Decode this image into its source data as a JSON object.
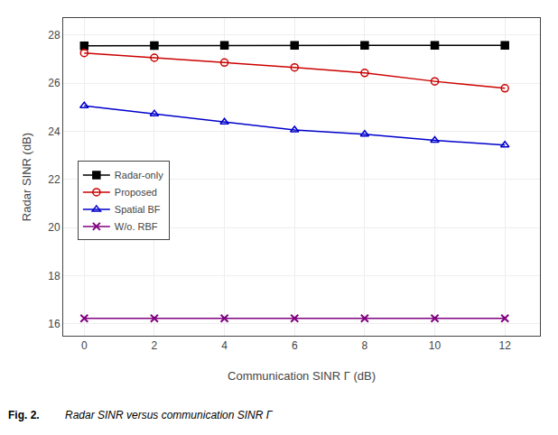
{
  "chart_data": {
    "type": "line",
    "x": [
      0,
      2,
      4,
      6,
      8,
      10,
      12
    ],
    "series": [
      {
        "name": "Radar-only",
        "color": "#000000",
        "marker": "square",
        "values": [
          27.55,
          27.56,
          27.57,
          27.57,
          27.57,
          27.57,
          27.57
        ]
      },
      {
        "name": "Proposed",
        "color": "#cc0000",
        "marker": "circle-open",
        "values": [
          27.25,
          27.05,
          26.85,
          26.65,
          26.42,
          26.07,
          25.78
        ]
      },
      {
        "name": "Spatial BF",
        "color": "#0000cc",
        "marker": "triangle-up-open",
        "values": [
          25.05,
          24.72,
          24.38,
          24.05,
          23.87,
          23.62,
          23.42
        ]
      },
      {
        "name": "W/o. RBF",
        "color": "#800080",
        "marker": "x-thin",
        "values": [
          16.22,
          16.22,
          16.22,
          16.22,
          16.22,
          16.22,
          16.22
        ]
      }
    ],
    "xlabel": "Communication SINR Γ (dB)",
    "ylabel": "Radar SINR (dB)",
    "xlim": [
      -0.6,
      13.0
    ],
    "ylim": [
      15.5,
      28.7
    ],
    "xticks": [
      0,
      2,
      4,
      6,
      8,
      10,
      12
    ],
    "yticks": [
      16,
      18,
      20,
      22,
      24,
      26,
      28
    ],
    "grid": true,
    "legend": "lower left",
    "annotations": [
      "Fig. 2.",
      "Radar SINR versus communication SINR Γ"
    ]
  }
}
